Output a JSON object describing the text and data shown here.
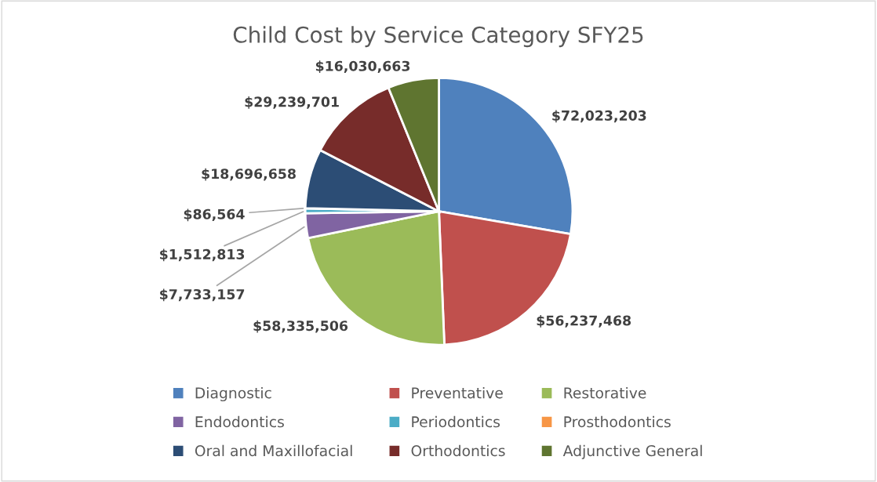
{
  "chart_data": {
    "type": "pie",
    "title": "Child Cost by Service Category SFY25",
    "categories": [
      "Diagnostic",
      "Preventative",
      "Restorative",
      "Endodontics",
      "Periodontics",
      "Prosthodontics",
      "Oral and Maxillofacial",
      "Orthodontics",
      "Adjunctive General"
    ],
    "values": [
      72023203,
      56237468,
      58335506,
      7733157,
      1512813,
      86564,
      18696658,
      29239701,
      16030663
    ],
    "value_labels": [
      "$72,023,203",
      "$56,237,468",
      "$58,335,506",
      "$7,733,157",
      "$1,512,813",
      "$86,564",
      "$18,696,658",
      "$29,239,701",
      "$16,030,663"
    ],
    "colors": [
      "#4f81bd",
      "#c0504d",
      "#9bbb59",
      "#8064a2",
      "#4bacc6",
      "#f79646",
      "#2c4d75",
      "#772c2a",
      "#5f7530"
    ],
    "legend": "bottom"
  }
}
